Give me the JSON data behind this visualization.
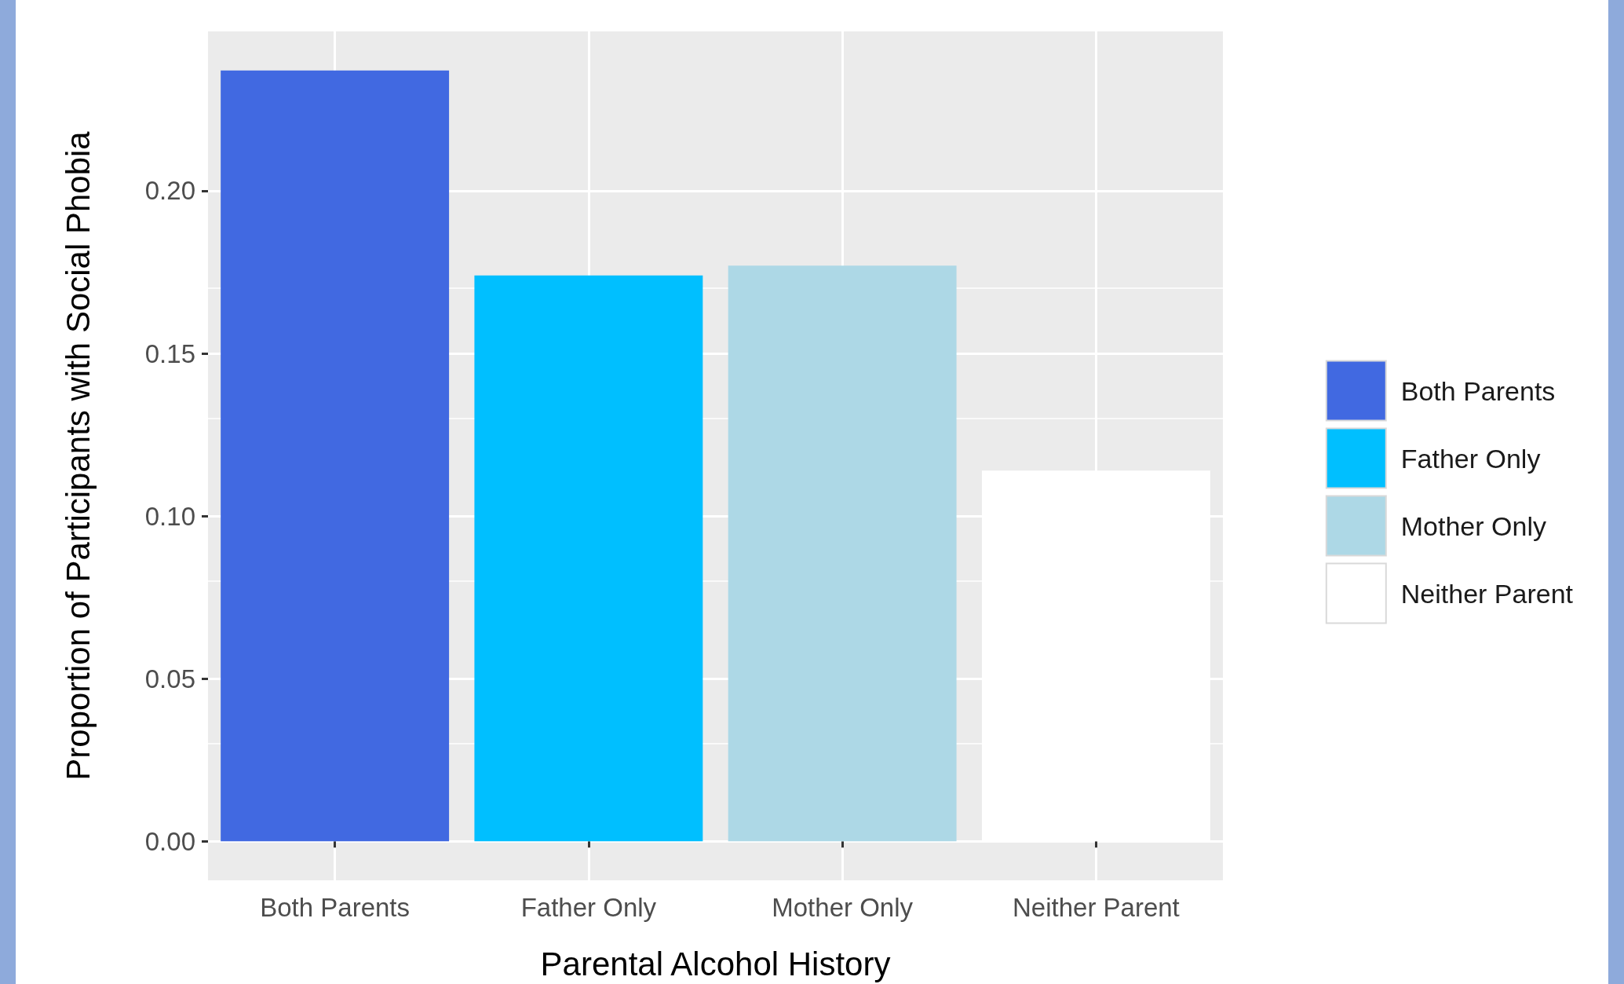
{
  "chart_data": {
    "type": "bar",
    "xlabel": "Parental Alcohol History",
    "ylabel": "Proportion of Participants with Social Phobia",
    "categories": [
      "Both Parents",
      "Father Only",
      "Mother Only",
      "Neither Parent"
    ],
    "series": [
      {
        "name": "Both Parents",
        "color": "#4169e1",
        "values": [
          0.237,
          null,
          null,
          null
        ]
      },
      {
        "name": "Father Only",
        "color": "#00bfff",
        "values": [
          null,
          0.174,
          null,
          null
        ]
      },
      {
        "name": "Mother Only",
        "color": "#add8e6",
        "values": [
          null,
          null,
          0.177,
          null
        ]
      },
      {
        "name": "Neither Parent",
        "color": "#ffffff",
        "values": [
          null,
          null,
          null,
          0.114
        ]
      }
    ],
    "ylim": [
      -0.012,
      0.249
    ],
    "yticks": [
      {
        "value": 0,
        "label": "0.00"
      },
      {
        "value": 0.05,
        "label": "0.05"
      },
      {
        "value": 0.1,
        "label": "0.10"
      },
      {
        "value": 0.15,
        "label": "0.15"
      },
      {
        "value": 0.2,
        "label": "0.20"
      }
    ],
    "grid": true,
    "legend": "right"
  }
}
